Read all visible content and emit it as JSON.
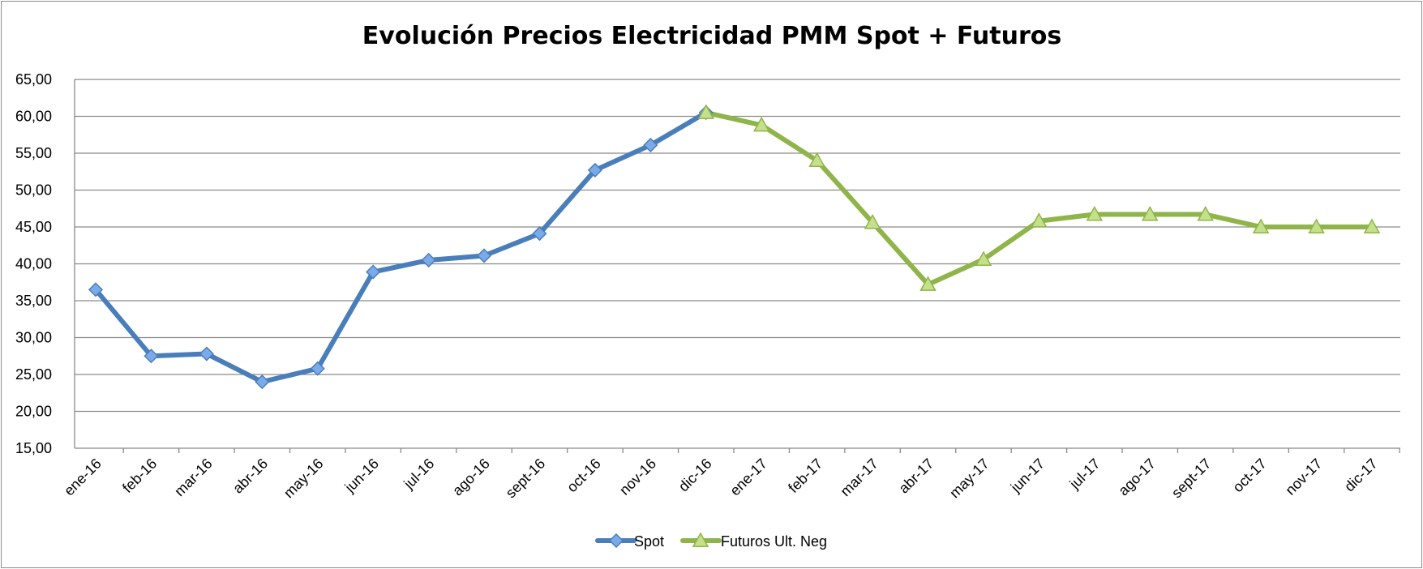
{
  "chart_data": {
    "type": "line",
    "title": "Evolución Precios Electricidad PMM Spot + Futuros",
    "xlabel": "",
    "ylabel": "",
    "ylim": [
      15,
      65
    ],
    "yticks": [
      "15,00",
      "20,00",
      "25,00",
      "30,00",
      "35,00",
      "40,00",
      "45,00",
      "50,00",
      "55,00",
      "60,00",
      "65,00"
    ],
    "grid": true,
    "legend": "bottom-center",
    "categories": [
      "ene-16",
      "feb-16",
      "mar-16",
      "abr-16",
      "may-16",
      "jun-16",
      "jul-16",
      "ago-16",
      "sept-16",
      "oct-16",
      "nov-16",
      "dic-16",
      "ene-17",
      "feb-17",
      "mar-17",
      "abr-17",
      "may-17",
      "jun-17",
      "jul-17",
      "ago-17",
      "sept-17",
      "oct-17",
      "nov-17",
      "dic-17"
    ],
    "series": [
      {
        "name": "Spot",
        "color": "#4a7ebb",
        "marker": "diamond",
        "values": [
          36.5,
          27.5,
          27.8,
          24.0,
          25.8,
          38.9,
          40.5,
          41.1,
          44.1,
          52.7,
          56.1,
          60.5,
          null,
          null,
          null,
          null,
          null,
          null,
          null,
          null,
          null,
          null,
          null,
          null
        ]
      },
      {
        "name": "Futuros Ult. Neg",
        "color": "#8fb54a",
        "marker": "triangle",
        "values": [
          null,
          null,
          null,
          null,
          null,
          null,
          null,
          null,
          null,
          null,
          null,
          60.5,
          58.8,
          54.0,
          45.6,
          37.2,
          40.6,
          45.8,
          46.7,
          46.7,
          46.7,
          45.0,
          45.0,
          45.0
        ]
      }
    ]
  }
}
